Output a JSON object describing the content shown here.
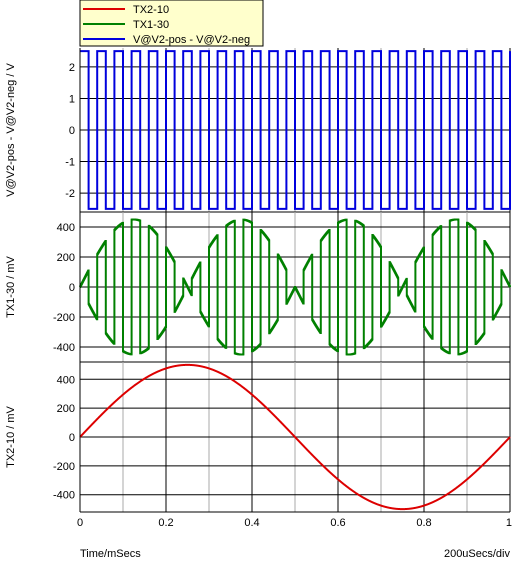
{
  "chart_data": {
    "type": "line",
    "x_unit_label": "Time/mSecs",
    "x_scale_label": "200uSecs/div",
    "x_ticks": [
      "0",
      "0.2",
      "0.4",
      "0.6",
      "0.8",
      "1"
    ],
    "xlim": [
      0,
      1
    ],
    "legend_position": "top-left",
    "legend": [
      {
        "name": "TX2-10",
        "color": "#dd0000"
      },
      {
        "name": "TX1-30",
        "color": "#008000"
      },
      {
        "name": "V@V2-pos - V@V2-neg",
        "color": "#0000dd"
      }
    ],
    "panels": [
      {
        "ylabel": "V@V2-pos - V@V2-neg / V",
        "yticks": [
          "2",
          "1",
          "0",
          "-1",
          "-2"
        ],
        "ylim": [
          -2.6,
          2.6
        ],
        "series": [
          {
            "name": "V@V2-pos - V@V2-neg",
            "color": "#0000dd",
            "kind": "square",
            "amplitude": 2.5,
            "period_ms": 0.04,
            "x_start": 0,
            "x_end": 1
          }
        ]
      },
      {
        "ylabel": "TX1-30 / mV",
        "yticks": [
          "400",
          "200",
          "0",
          "-200",
          "-400"
        ],
        "ylim": [
          -500,
          500
        ],
        "series": [
          {
            "name": "TX1-30",
            "color": "#008000",
            "kind": "chopped-sine",
            "amplitude": 450,
            "period_ms": 0.04,
            "envelope_period_ms": 0.5,
            "x_start": 0,
            "x_end": 1
          }
        ]
      },
      {
        "ylabel": "TX2-10 / mV",
        "yticks": [
          "400",
          "200",
          "0",
          "-200",
          "-400"
        ],
        "ylim": [
          -520,
          520
        ],
        "series": [
          {
            "name": "TX2-10",
            "color": "#dd0000",
            "kind": "sine",
            "amplitude": 500,
            "period_ms": 1,
            "x_start": 0,
            "x_end": 1
          }
        ]
      }
    ]
  }
}
